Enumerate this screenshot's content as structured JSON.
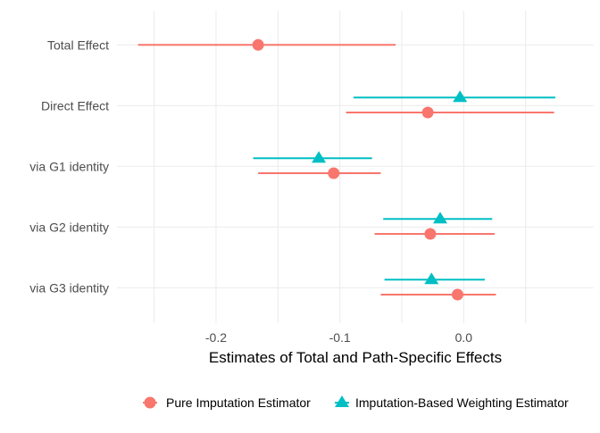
{
  "chart_data": {
    "type": "dot-and-whisker",
    "xlabel": "Estimates of Total and Path-Specific Effects",
    "ylabel": "",
    "xlim": [
      -0.28,
      0.105
    ],
    "x_ticks": [
      -0.2,
      -0.1,
      0.0
    ],
    "x_tick_labels": [
      "-0.2",
      "-0.1",
      "0.0"
    ],
    "grid": true,
    "legend_position": "bottom",
    "categories": [
      "Total Effect",
      "Direct Effect",
      "via G1 identity",
      "via G2 identity",
      "via G3 identity"
    ],
    "series": [
      {
        "name": "Pure Imputation Estimator",
        "color": "#F8766D",
        "marker": "circle",
        "estimates": [
          -0.166,
          -0.029,
          -0.105,
          -0.027,
          -0.005
        ],
        "lower": [
          -0.263,
          -0.095,
          -0.166,
          -0.072,
          -0.067
        ],
        "upper": [
          -0.055,
          0.073,
          -0.067,
          0.025,
          0.026
        ]
      },
      {
        "name": "Imputation-Based Weighting Estimator",
        "color": "#00BFC4",
        "marker": "triangle",
        "estimates": [
          null,
          -0.003,
          -0.117,
          -0.019,
          -0.026
        ],
        "lower": [
          null,
          -0.089,
          -0.17,
          -0.065,
          -0.064
        ],
        "upper": [
          null,
          0.074,
          -0.074,
          0.023,
          0.017
        ]
      }
    ]
  }
}
